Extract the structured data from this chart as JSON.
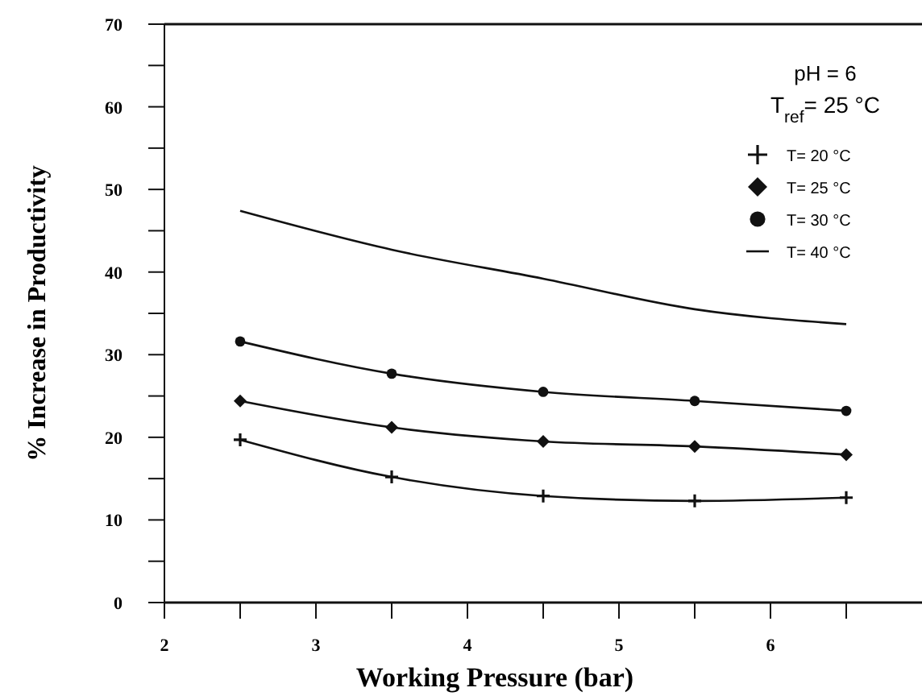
{
  "chart_data": {
    "type": "line",
    "xlabel": "Working Pressure (bar)",
    "ylabel": "% Increase in Productivity",
    "x": [
      2.5,
      3.5,
      4.5,
      5.5,
      6.5
    ],
    "xlim": [
      2,
      7
    ],
    "xticks": [
      2,
      {
        "value": 2.5,
        "label": null
      },
      3,
      {
        "value": 3.5,
        "label": null
      },
      4,
      {
        "value": 4.5,
        "label": null
      },
      5,
      {
        "value": 5.5,
        "label": null
      },
      6,
      {
        "value": 6.5,
        "label": null
      }
    ],
    "ylim": [
      0,
      70
    ],
    "yticks": [
      0,
      {
        "value": 5,
        "label": null
      },
      10,
      {
        "value": 15,
        "label": null
      },
      20,
      {
        "value": 25,
        "label": null
      },
      30,
      {
        "value": 35,
        "label": null
      },
      40,
      {
        "value": 45,
        "label": null
      },
      50,
      {
        "value": 55,
        "label": null
      },
      60,
      {
        "value": 65,
        "label": null
      },
      70
    ],
    "legend": "top right",
    "legend_title": "pH = 6",
    "annotations": [
      "T$_{ref}$= 25 °C"
    ],
    "grid": false,
    "line_style": "solid",
    "series": [
      {
        "name": "T= 20 °C",
        "color": "#111111",
        "marker": "cross",
        "values": [
          19.7,
          15.2,
          12.9,
          12.3,
          12.7
        ]
      },
      {
        "name": "T= 25 °C",
        "color": "#111111",
        "marker": "diamond",
        "values": [
          24.4,
          21.2,
          19.5,
          18.9,
          17.9
        ]
      },
      {
        "name": "T= 30 °C",
        "color": "#111111",
        "marker": "circle",
        "values": [
          31.6,
          27.7,
          25.5,
          24.4,
          23.2
        ]
      },
      {
        "name": "T= 40 °C",
        "color": "#111111",
        "marker": "none",
        "values": [
          47.4,
          42.7,
          39.2,
          35.5,
          33.7
        ]
      }
    ]
  }
}
